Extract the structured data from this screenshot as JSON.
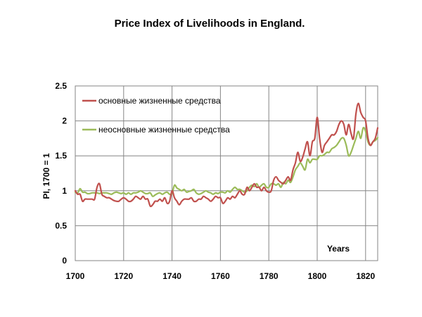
{
  "chart_data": {
    "type": "line",
    "title": "Price Index of Livelihoods in England.",
    "xlabel": "Years",
    "ylabel": "PI, 1700 = 1",
    "xlim": [
      1700,
      1825
    ],
    "ylim": [
      0,
      2.5
    ],
    "x_ticks": [
      "1700",
      "1720",
      "1740",
      "1760",
      "1780",
      "1800",
      "1820"
    ],
    "y_ticks": [
      "0",
      "0.5",
      "1",
      "1.5",
      "2",
      "2.5"
    ],
    "grid": true,
    "legend_position": "top-left",
    "series": [
      {
        "name": "основные жизненные средства",
        "color": "#c0504d",
        "x": [
          1700,
          1701,
          1702,
          1703,
          1704,
          1705,
          1706,
          1707,
          1708,
          1709,
          1710,
          1711,
          1712,
          1713,
          1714,
          1715,
          1716,
          1717,
          1718,
          1719,
          1720,
          1721,
          1722,
          1723,
          1724,
          1725,
          1726,
          1727,
          1728,
          1729,
          1730,
          1731,
          1732,
          1733,
          1734,
          1735,
          1736,
          1737,
          1738,
          1739,
          1740,
          1741,
          1742,
          1743,
          1744,
          1745,
          1746,
          1747,
          1748,
          1749,
          1750,
          1751,
          1752,
          1753,
          1754,
          1755,
          1756,
          1757,
          1758,
          1759,
          1760,
          1761,
          1762,
          1763,
          1764,
          1765,
          1766,
          1767,
          1768,
          1769,
          1770,
          1771,
          1772,
          1773,
          1774,
          1775,
          1776,
          1777,
          1778,
          1779,
          1780,
          1781,
          1782,
          1783,
          1784,
          1785,
          1786,
          1787,
          1788,
          1789,
          1790,
          1791,
          1792,
          1793,
          1794,
          1795,
          1796,
          1797,
          1798,
          1799,
          1800,
          1801,
          1802,
          1803,
          1804,
          1805,
          1806,
          1807,
          1808,
          1809,
          1810,
          1811,
          1812,
          1813,
          1814,
          1815,
          1816,
          1817,
          1818,
          1819,
          1820,
          1821,
          1822,
          1823,
          1824,
          1825
        ],
        "values": [
          1.0,
          0.95,
          0.95,
          0.85,
          0.88,
          0.88,
          0.88,
          0.88,
          0.88,
          1.05,
          1.1,
          0.95,
          0.92,
          0.9,
          0.9,
          0.88,
          0.86,
          0.85,
          0.85,
          0.88,
          0.9,
          0.88,
          0.85,
          0.85,
          0.88,
          0.92,
          0.9,
          0.88,
          0.92,
          0.88,
          0.88,
          0.78,
          0.8,
          0.85,
          0.85,
          0.88,
          0.85,
          0.9,
          0.82,
          0.85,
          1.0,
          0.9,
          0.85,
          0.8,
          0.85,
          0.88,
          0.88,
          0.88,
          0.9,
          0.85,
          0.85,
          0.88,
          0.88,
          0.92,
          0.9,
          0.88,
          0.85,
          0.88,
          0.92,
          0.9,
          0.9,
          0.82,
          0.85,
          0.9,
          0.88,
          0.92,
          0.9,
          0.95,
          1.0,
          0.95,
          0.95,
          1.05,
          1.0,
          1.05,
          1.1,
          1.05,
          1.05,
          1.0,
          1.05,
          1.0,
          0.98,
          1.0,
          1.15,
          1.2,
          1.15,
          1.12,
          1.1,
          1.15,
          1.2,
          1.15,
          1.3,
          1.4,
          1.55,
          1.42,
          1.48,
          1.6,
          1.7,
          1.5,
          1.7,
          1.75,
          2.05,
          1.75,
          1.55,
          1.65,
          1.7,
          1.75,
          1.8,
          1.8,
          1.85,
          1.95,
          2.0,
          1.95,
          1.8,
          1.95,
          1.82,
          1.75,
          2.1,
          2.25,
          2.12,
          2.05,
          2.0,
          1.75,
          1.65,
          1.7,
          1.75,
          1.9
        ]
      },
      {
        "name": "неосновные жизненные средства",
        "color": "#9bbb59",
        "x": [
          1700,
          1701,
          1702,
          1703,
          1704,
          1705,
          1706,
          1707,
          1708,
          1709,
          1710,
          1711,
          1712,
          1713,
          1714,
          1715,
          1716,
          1717,
          1718,
          1719,
          1720,
          1721,
          1722,
          1723,
          1724,
          1725,
          1726,
          1727,
          1728,
          1729,
          1730,
          1731,
          1732,
          1733,
          1734,
          1735,
          1736,
          1737,
          1738,
          1739,
          1740,
          1741,
          1742,
          1743,
          1744,
          1745,
          1746,
          1747,
          1748,
          1749,
          1750,
          1751,
          1752,
          1753,
          1754,
          1755,
          1756,
          1757,
          1758,
          1759,
          1760,
          1761,
          1762,
          1763,
          1764,
          1765,
          1766,
          1767,
          1768,
          1769,
          1770,
          1771,
          1772,
          1773,
          1774,
          1775,
          1776,
          1777,
          1778,
          1779,
          1780,
          1781,
          1782,
          1783,
          1784,
          1785,
          1786,
          1787,
          1788,
          1789,
          1790,
          1791,
          1792,
          1793,
          1794,
          1795,
          1796,
          1797,
          1798,
          1799,
          1800,
          1801,
          1802,
          1803,
          1804,
          1805,
          1806,
          1807,
          1808,
          1809,
          1810,
          1811,
          1812,
          1813,
          1814,
          1815,
          1816,
          1817,
          1818,
          1819,
          1820,
          1821,
          1822,
          1823,
          1824,
          1825
        ],
        "values": [
          0.98,
          0.97,
          1.03,
          0.98,
          0.98,
          0.96,
          0.96,
          0.97,
          0.97,
          0.97,
          0.96,
          0.97,
          0.97,
          0.97,
          0.96,
          0.95,
          0.97,
          0.98,
          0.97,
          0.96,
          0.97,
          0.95,
          0.97,
          0.95,
          0.97,
          0.97,
          0.98,
          1.0,
          0.98,
          0.96,
          0.96,
          0.97,
          0.92,
          0.94,
          0.96,
          0.97,
          0.95,
          0.97,
          0.98,
          0.95,
          0.96,
          1.08,
          1.04,
          1.02,
          1.0,
          1.02,
          0.98,
          0.99,
          1.0,
          1.02,
          0.97,
          0.95,
          0.96,
          0.98,
          1.0,
          0.98,
          0.97,
          0.95,
          0.97,
          0.96,
          0.98,
          0.98,
          0.97,
          1.0,
          0.98,
          1.02,
          1.05,
          1.02,
          1.02,
          1.0,
          0.98,
          1.0,
          1.05,
          1.08,
          1.06,
          1.1,
          1.05,
          1.08,
          1.1,
          1.05,
          1.05,
          1.1,
          1.1,
          1.08,
          1.1,
          1.05,
          1.12,
          1.1,
          1.15,
          1.12,
          1.2,
          1.3,
          1.35,
          1.4,
          1.35,
          1.3,
          1.45,
          1.4,
          1.45,
          1.45,
          1.45,
          1.5,
          1.5,
          1.52,
          1.55,
          1.55,
          1.6,
          1.62,
          1.65,
          1.7,
          1.75,
          1.75,
          1.65,
          1.5,
          1.55,
          1.65,
          1.75,
          1.85,
          1.75,
          1.9,
          1.85,
          1.7,
          1.65,
          1.7,
          1.72,
          1.76
        ]
      }
    ]
  }
}
